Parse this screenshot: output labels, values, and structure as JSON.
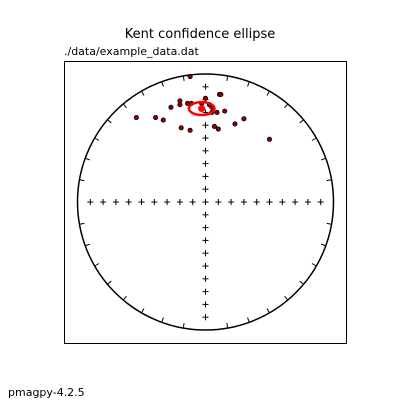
{
  "chart_data": {
    "type": "scatter",
    "projection": "equal-area stereonet",
    "title": "Kent confidence ellipse",
    "subtitle": "./data/example_data.dat",
    "footer": "pmagpy-4.2.5",
    "marker_color": "#8b0000",
    "ellipse_color": "#ff0000",
    "points": [
      {
        "x": -0.12,
        "y": 0.98
      },
      {
        "x": 0.0,
        "y": 0.81
      },
      {
        "x": 0.11,
        "y": 0.84
      },
      {
        "x": 0.12,
        "y": 0.84
      },
      {
        "x": -0.2,
        "y": 0.79
      },
      {
        "x": -0.2,
        "y": 0.76
      },
      {
        "x": -0.14,
        "y": 0.77
      },
      {
        "x": -0.11,
        "y": 0.77
      },
      {
        "x": -0.03,
        "y": 0.77
      },
      {
        "x": 0.03,
        "y": 0.76
      },
      {
        "x": 0.05,
        "y": 0.74
      },
      {
        "x": -0.27,
        "y": 0.74
      },
      {
        "x": 0.15,
        "y": 0.71
      },
      {
        "x": 0.09,
        "y": 0.7
      },
      {
        "x": 0.05,
        "y": 0.7
      },
      {
        "x": -0.54,
        "y": 0.66
      },
      {
        "x": -0.39,
        "y": 0.66
      },
      {
        "x": -0.33,
        "y": 0.64
      },
      {
        "x": 0.3,
        "y": 0.65
      },
      {
        "x": 0.23,
        "y": 0.61
      },
      {
        "x": -0.19,
        "y": 0.58
      },
      {
        "x": 0.07,
        "y": 0.59
      },
      {
        "x": -0.12,
        "y": 0.56
      },
      {
        "x": 0.1,
        "y": 0.57
      },
      {
        "x": 0.5,
        "y": 0.49
      }
    ],
    "mean": {
      "x": -0.03,
      "y": 0.73
    },
    "ellipse": {
      "center_x": -0.03,
      "center_y": 0.73,
      "semi_major": 0.1,
      "semi_minor": 0.05,
      "rotation_deg": 0
    },
    "axis_ticks": {
      "x": [
        -0.9,
        -0.8,
        -0.7,
        -0.6,
        -0.5,
        -0.4,
        -0.3,
        -0.2,
        -0.1,
        0.1,
        0.2,
        0.3,
        0.4,
        0.5,
        0.6,
        0.7,
        0.8,
        0.9
      ],
      "y": [
        -0.9,
        -0.8,
        -0.7,
        -0.6,
        -0.5,
        -0.4,
        -0.3,
        -0.2,
        -0.1,
        0.1,
        0.2,
        0.3,
        0.4,
        0.5,
        0.6,
        0.7,
        0.8,
        0.9
      ]
    },
    "xlim": [
      -1.1,
      1.1
    ],
    "ylim": [
      -1.1,
      1.1
    ],
    "grid": false
  }
}
